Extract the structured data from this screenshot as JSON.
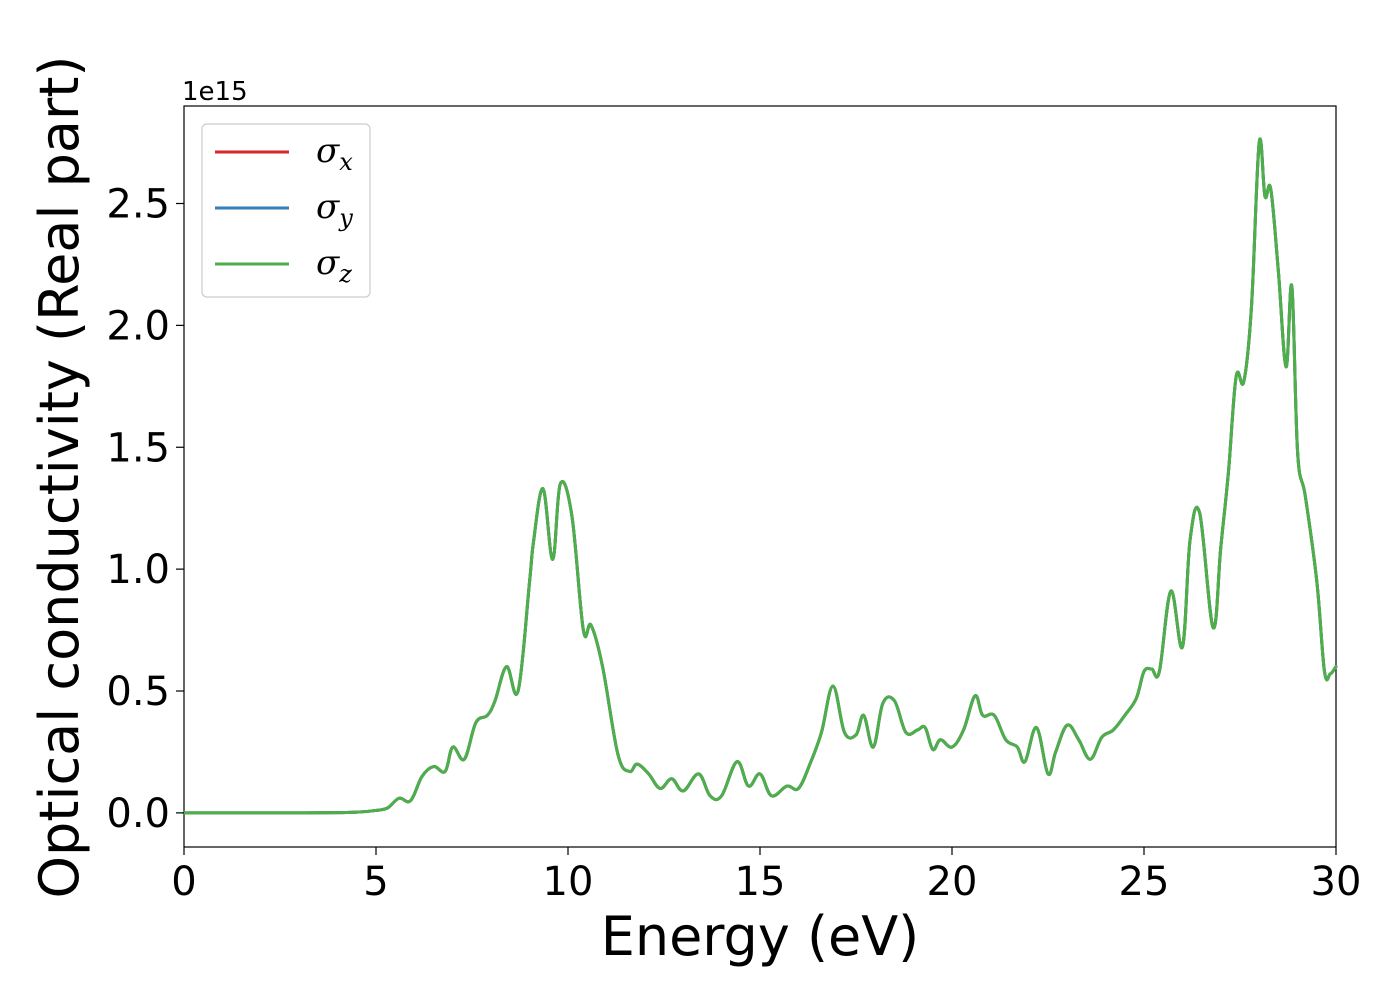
{
  "chart_data": {
    "type": "line",
    "title": "",
    "xlabel": "Energy (eV)",
    "ylabel": "Optical conductivity (Real part)",
    "y_offset_text": "1e15",
    "xlim": [
      0,
      30
    ],
    "ylim": [
      -0.14,
      2.9
    ],
    "x_ticks": [
      0,
      5,
      10,
      15,
      20,
      25,
      30
    ],
    "y_ticks": [
      0.0,
      0.5,
      1.0,
      1.5,
      2.0,
      2.5
    ],
    "x_tick_labels": [
      "0",
      "5",
      "10",
      "15",
      "20",
      "25",
      "30"
    ],
    "y_tick_labels": [
      "0.0",
      "0.5",
      "1.0",
      "1.5",
      "2.0",
      "2.5"
    ],
    "grid": false,
    "legend_position": "top-left",
    "x": [
      0,
      1,
      2,
      3,
      4,
      4.5,
      5,
      5.3,
      5.6,
      5.9,
      6.2,
      6.5,
      6.8,
      7.0,
      7.3,
      7.6,
      7.9,
      8.1,
      8.4,
      8.7,
      9.0,
      9.1,
      9.35,
      9.6,
      9.8,
      10.1,
      10.4,
      10.6,
      10.9,
      11.3,
      11.6,
      11.8,
      12.1,
      12.4,
      12.7,
      13.0,
      13.4,
      13.7,
      14.0,
      14.4,
      14.7,
      15.0,
      15.3,
      15.7,
      16.0,
      16.3,
      16.6,
      16.9,
      17.2,
      17.5,
      17.7,
      17.95,
      18.2,
      18.5,
      18.8,
      19.1,
      19.3,
      19.5,
      19.7,
      20.0,
      20.3,
      20.6,
      20.8,
      21.1,
      21.4,
      21.7,
      21.9,
      22.2,
      22.5,
      22.7,
      23.0,
      23.3,
      23.6,
      23.9,
      24.2,
      24.5,
      24.8,
      25.0,
      25.2,
      25.4,
      25.7,
      26.0,
      26.2,
      26.45,
      26.8,
      27.0,
      27.2,
      27.4,
      27.6,
      27.8,
      28.0,
      28.15,
      28.3,
      28.5,
      28.7,
      28.85,
      29.0,
      29.2,
      29.5,
      29.7,
      29.85,
      30.0
    ],
    "series": [
      {
        "name": "σ_x",
        "color": "#d62728",
        "values": [
          0,
          0,
          0,
          0,
          0.001,
          0.003,
          0.01,
          0.02,
          0.06,
          0.05,
          0.15,
          0.19,
          0.17,
          0.27,
          0.22,
          0.37,
          0.4,
          0.46,
          0.6,
          0.5,
          0.95,
          1.11,
          1.33,
          1.04,
          1.35,
          1.22,
          0.75,
          0.77,
          0.6,
          0.24,
          0.17,
          0.2,
          0.16,
          0.1,
          0.14,
          0.09,
          0.16,
          0.07,
          0.07,
          0.21,
          0.11,
          0.16,
          0.07,
          0.11,
          0.1,
          0.2,
          0.33,
          0.52,
          0.33,
          0.32,
          0.4,
          0.27,
          0.45,
          0.46,
          0.33,
          0.34,
          0.35,
          0.26,
          0.3,
          0.27,
          0.34,
          0.48,
          0.4,
          0.4,
          0.3,
          0.27,
          0.21,
          0.35,
          0.16,
          0.25,
          0.36,
          0.3,
          0.22,
          0.31,
          0.34,
          0.4,
          0.47,
          0.58,
          0.59,
          0.58,
          0.91,
          0.68,
          1.12,
          1.23,
          0.76,
          1.09,
          1.4,
          1.79,
          1.77,
          2.08,
          2.75,
          2.53,
          2.56,
          2.22,
          1.83,
          2.16,
          1.48,
          1.3,
          0.95,
          0.58,
          0.57,
          0.6
        ]
      },
      {
        "name": "σ_y",
        "color": "#377eb8",
        "values": [
          0,
          0,
          0,
          0,
          0.001,
          0.003,
          0.01,
          0.02,
          0.06,
          0.05,
          0.15,
          0.19,
          0.17,
          0.27,
          0.22,
          0.37,
          0.4,
          0.46,
          0.6,
          0.5,
          0.95,
          1.11,
          1.33,
          1.04,
          1.35,
          1.22,
          0.75,
          0.77,
          0.6,
          0.24,
          0.17,
          0.2,
          0.16,
          0.1,
          0.14,
          0.09,
          0.16,
          0.07,
          0.07,
          0.21,
          0.11,
          0.16,
          0.07,
          0.11,
          0.1,
          0.2,
          0.33,
          0.52,
          0.33,
          0.32,
          0.4,
          0.27,
          0.45,
          0.46,
          0.33,
          0.34,
          0.35,
          0.26,
          0.3,
          0.27,
          0.34,
          0.48,
          0.4,
          0.4,
          0.3,
          0.27,
          0.21,
          0.35,
          0.16,
          0.25,
          0.36,
          0.3,
          0.22,
          0.31,
          0.34,
          0.4,
          0.47,
          0.58,
          0.59,
          0.58,
          0.91,
          0.68,
          1.12,
          1.23,
          0.76,
          1.09,
          1.4,
          1.79,
          1.77,
          2.08,
          2.75,
          2.53,
          2.56,
          2.22,
          1.83,
          2.16,
          1.48,
          1.3,
          0.95,
          0.58,
          0.57,
          0.6
        ]
      },
      {
        "name": "σ_z",
        "color": "#4daf4a",
        "values": [
          0,
          0,
          0,
          0,
          0.001,
          0.003,
          0.01,
          0.02,
          0.06,
          0.05,
          0.15,
          0.19,
          0.17,
          0.27,
          0.22,
          0.37,
          0.4,
          0.46,
          0.6,
          0.5,
          0.95,
          1.11,
          1.33,
          1.04,
          1.35,
          1.22,
          0.75,
          0.77,
          0.6,
          0.24,
          0.17,
          0.2,
          0.16,
          0.1,
          0.14,
          0.09,
          0.16,
          0.07,
          0.07,
          0.21,
          0.11,
          0.16,
          0.07,
          0.11,
          0.1,
          0.2,
          0.33,
          0.52,
          0.33,
          0.32,
          0.4,
          0.27,
          0.45,
          0.46,
          0.33,
          0.34,
          0.35,
          0.26,
          0.3,
          0.27,
          0.34,
          0.48,
          0.4,
          0.4,
          0.3,
          0.27,
          0.21,
          0.35,
          0.16,
          0.25,
          0.36,
          0.3,
          0.22,
          0.31,
          0.34,
          0.4,
          0.47,
          0.58,
          0.59,
          0.58,
          0.91,
          0.68,
          1.12,
          1.23,
          0.76,
          1.09,
          1.4,
          1.79,
          1.77,
          2.08,
          2.75,
          2.53,
          2.56,
          2.22,
          1.83,
          2.16,
          1.48,
          1.3,
          0.95,
          0.58,
          0.57,
          0.6
        ]
      }
    ],
    "legend": [
      {
        "symbol": "σ",
        "sub": "x",
        "color": "#d62728"
      },
      {
        "symbol": "σ",
        "sub": "y",
        "color": "#377eb8"
      },
      {
        "symbol": "σ",
        "sub": "z",
        "color": "#4daf4a"
      }
    ]
  }
}
